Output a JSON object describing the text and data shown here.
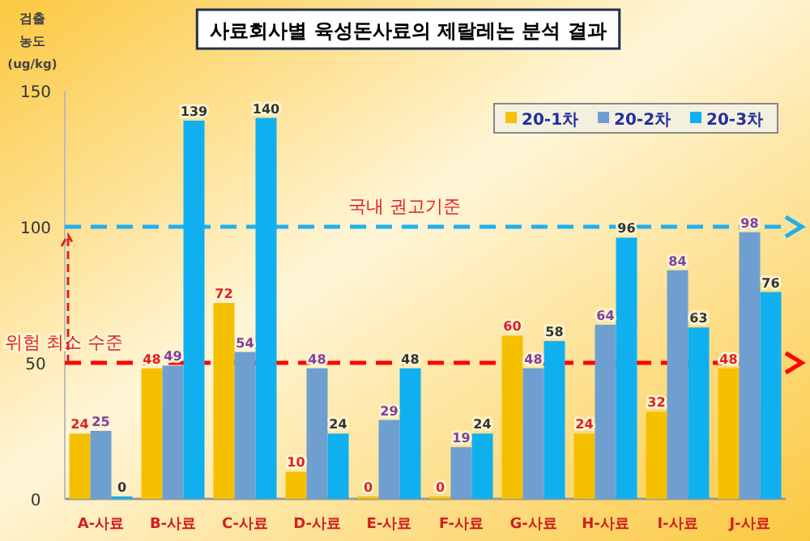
{
  "chart_data": {
    "type": "bar",
    "title": "사료회사별 육성돈사료의 제랄레논 분석 결과",
    "ylabel": "검출 농도 (ug/kg)",
    "categories": [
      "A-사료",
      "B-사료",
      "C-사료",
      "D-사료",
      "E-사료",
      "F-사료",
      "G-사료",
      "H-사료",
      "I-사료",
      "J-사료"
    ],
    "series": [
      {
        "name": "20-1차",
        "color": "#f5c000",
        "values": [
          24,
          48,
          72,
          10,
          0,
          0,
          60,
          24,
          32,
          48
        ]
      },
      {
        "name": "20-2차",
        "color": "#6f9fd0",
        "values": [
          25,
          49,
          54,
          48,
          29,
          19,
          48,
          64,
          84,
          98
        ]
      },
      {
        "name": "20-3차",
        "color": "#10b0f0",
        "values": [
          0,
          139,
          140,
          24,
          48,
          24,
          58,
          96,
          63,
          76
        ]
      }
    ],
    "ylim": [
      0,
      150
    ],
    "yticks": [
      0,
      50,
      100,
      150
    ],
    "ref_lines": [
      {
        "axis": "y",
        "value": 100,
        "label": "국내 권고기준",
        "color": "#20b0f0",
        "line_style": "dashed"
      },
      {
        "axis": "y",
        "value": 50,
        "label": "위험 최소 수준",
        "color": "#ff0000",
        "line_style": "dashed"
      }
    ],
    "data_labels": true,
    "legend": "top right",
    "grid": false
  }
}
